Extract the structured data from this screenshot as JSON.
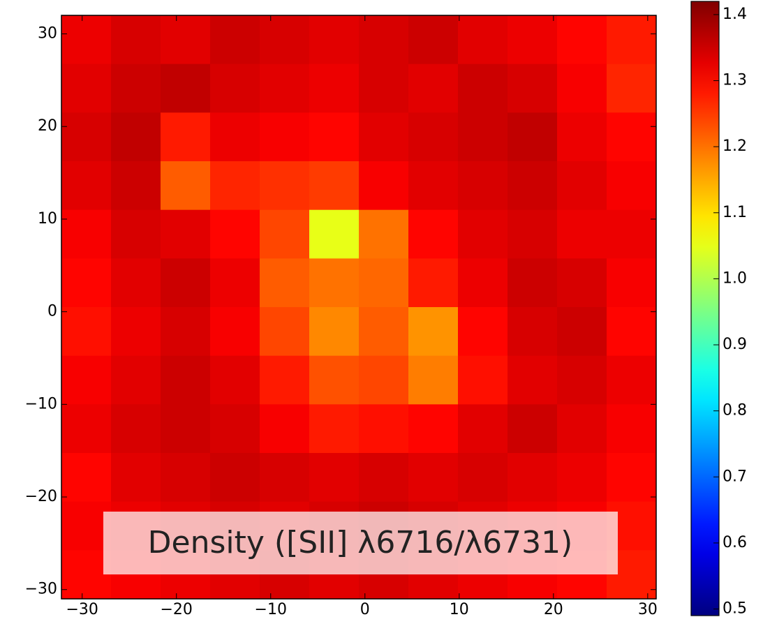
{
  "chart_data": {
    "type": "heatmap",
    "annotation": "Density ([SII] λ6716/λ6731)",
    "colormap": "jet",
    "xlim": [
      -32.2,
      30.9
    ],
    "ylim": [
      -31,
      32
    ],
    "xticks": [
      {
        "value": -30,
        "label": "−30"
      },
      {
        "value": -20,
        "label": "−20"
      },
      {
        "value": -10,
        "label": "−10"
      },
      0,
      10,
      20,
      30
    ],
    "yticks": [
      {
        "value": -30,
        "label": "−30"
      },
      {
        "value": -20,
        "label": "−20"
      },
      {
        "value": -10,
        "label": "−10"
      },
      0,
      10,
      20,
      30
    ],
    "clim": [
      0.49,
      1.42
    ],
    "cticks": [
      0.5,
      0.6,
      0.7,
      0.8,
      0.9,
      {
        "value": 1,
        "label": "1.0"
      },
      1.1,
      1.2,
      1.3,
      1.4
    ],
    "z": [
      [
        1.32,
        1.34,
        1.33,
        1.35,
        1.34,
        1.33,
        1.34,
        1.35,
        1.33,
        1.32,
        1.3,
        1.28
      ],
      [
        1.33,
        1.35,
        1.36,
        1.34,
        1.33,
        1.32,
        1.34,
        1.33,
        1.35,
        1.34,
        1.31,
        1.27
      ],
      [
        1.34,
        1.36,
        1.28,
        1.32,
        1.31,
        1.3,
        1.33,
        1.34,
        1.35,
        1.36,
        1.32,
        1.3
      ],
      [
        1.33,
        1.35,
        1.22,
        1.27,
        1.26,
        1.25,
        1.31,
        1.33,
        1.34,
        1.35,
        1.33,
        1.31
      ],
      [
        1.31,
        1.34,
        1.33,
        1.3,
        1.24,
        1.05,
        1.2,
        1.3,
        1.33,
        1.34,
        1.32,
        1.32
      ],
      [
        1.3,
        1.33,
        1.35,
        1.32,
        1.22,
        1.2,
        1.21,
        1.28,
        1.32,
        1.35,
        1.34,
        1.31
      ],
      [
        1.29,
        1.32,
        1.34,
        1.31,
        1.24,
        1.18,
        1.22,
        1.17,
        1.3,
        1.34,
        1.35,
        1.3
      ],
      [
        1.31,
        1.33,
        1.35,
        1.33,
        1.28,
        1.23,
        1.24,
        1.19,
        1.29,
        1.33,
        1.34,
        1.32
      ],
      [
        1.32,
        1.34,
        1.35,
        1.34,
        1.31,
        1.28,
        1.29,
        1.3,
        1.33,
        1.35,
        1.33,
        1.31
      ],
      [
        1.3,
        1.33,
        1.34,
        1.35,
        1.34,
        1.33,
        1.34,
        1.33,
        1.34,
        1.33,
        1.32,
        1.3
      ],
      [
        1.31,
        1.32,
        1.33,
        1.34,
        1.33,
        1.34,
        1.35,
        1.34,
        1.33,
        1.32,
        1.31,
        1.29
      ],
      [
        1.3,
        1.31,
        1.32,
        1.33,
        1.34,
        1.33,
        1.34,
        1.33,
        1.32,
        1.31,
        1.3,
        1.28
      ]
    ]
  }
}
